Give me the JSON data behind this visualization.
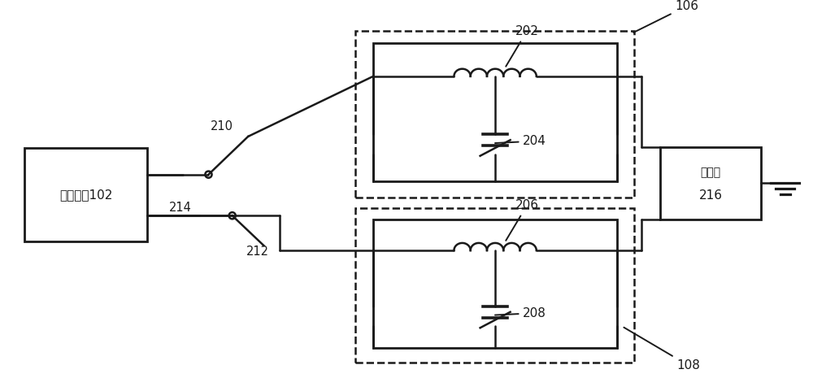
{
  "bg_color": "#ffffff",
  "lc": "#1a1a1a",
  "lw": 1.8,
  "labels": {
    "power_module": "电源模块102",
    "transistor_l1": "晋体管",
    "transistor_l2": "216",
    "n106": "106",
    "n202": "202",
    "n204": "204",
    "n206": "206",
    "n208": "208",
    "n210": "210",
    "n212": "212",
    "n214": "214",
    "n108": "108"
  },
  "figsize": [
    10.0,
    4.65
  ],
  "dpi": 100,
  "xlim": [
    0,
    10.0
  ],
  "ylim": [
    0,
    4.65
  ]
}
